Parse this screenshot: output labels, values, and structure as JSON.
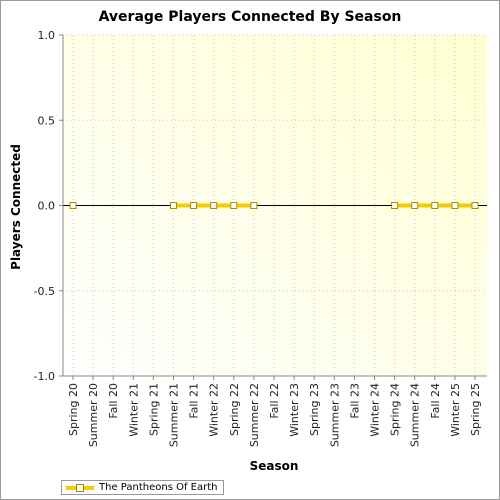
{
  "chart_data": {
    "type": "line",
    "title": "Average Players Connected By Season",
    "xlabel": "Season",
    "ylabel": "Players Connected",
    "categories": [
      "Spring 20",
      "Summer 20",
      "Fall 20",
      "Winter 21",
      "Spring 21",
      "Summer 21",
      "Fall 21",
      "Winter 22",
      "Spring 22",
      "Summer 22",
      "Fall 22",
      "Winter 23",
      "Spring 23",
      "Summer 23",
      "Fall 23",
      "Winter 24",
      "Spring 24",
      "Summer 24",
      "Fall 24",
      "Winter 25",
      "Spring 25"
    ],
    "yticks": [
      "1.0",
      "0.5",
      "0.0",
      "-0.5",
      "-1.0"
    ],
    "ytick_values": [
      1.0,
      0.5,
      0.0,
      -0.5,
      -1.0
    ],
    "ylim": [
      -1.0,
      1.0
    ],
    "grid": true,
    "legend_placement": "bottom-left",
    "series": [
      {
        "name": "The Pantheons Of Earth",
        "color": "#f2cc00",
        "values": [
          0,
          null,
          null,
          null,
          null,
          0,
          0,
          0,
          0,
          0,
          null,
          null,
          null,
          null,
          null,
          null,
          0,
          0,
          0,
          0,
          0
        ]
      }
    ]
  }
}
